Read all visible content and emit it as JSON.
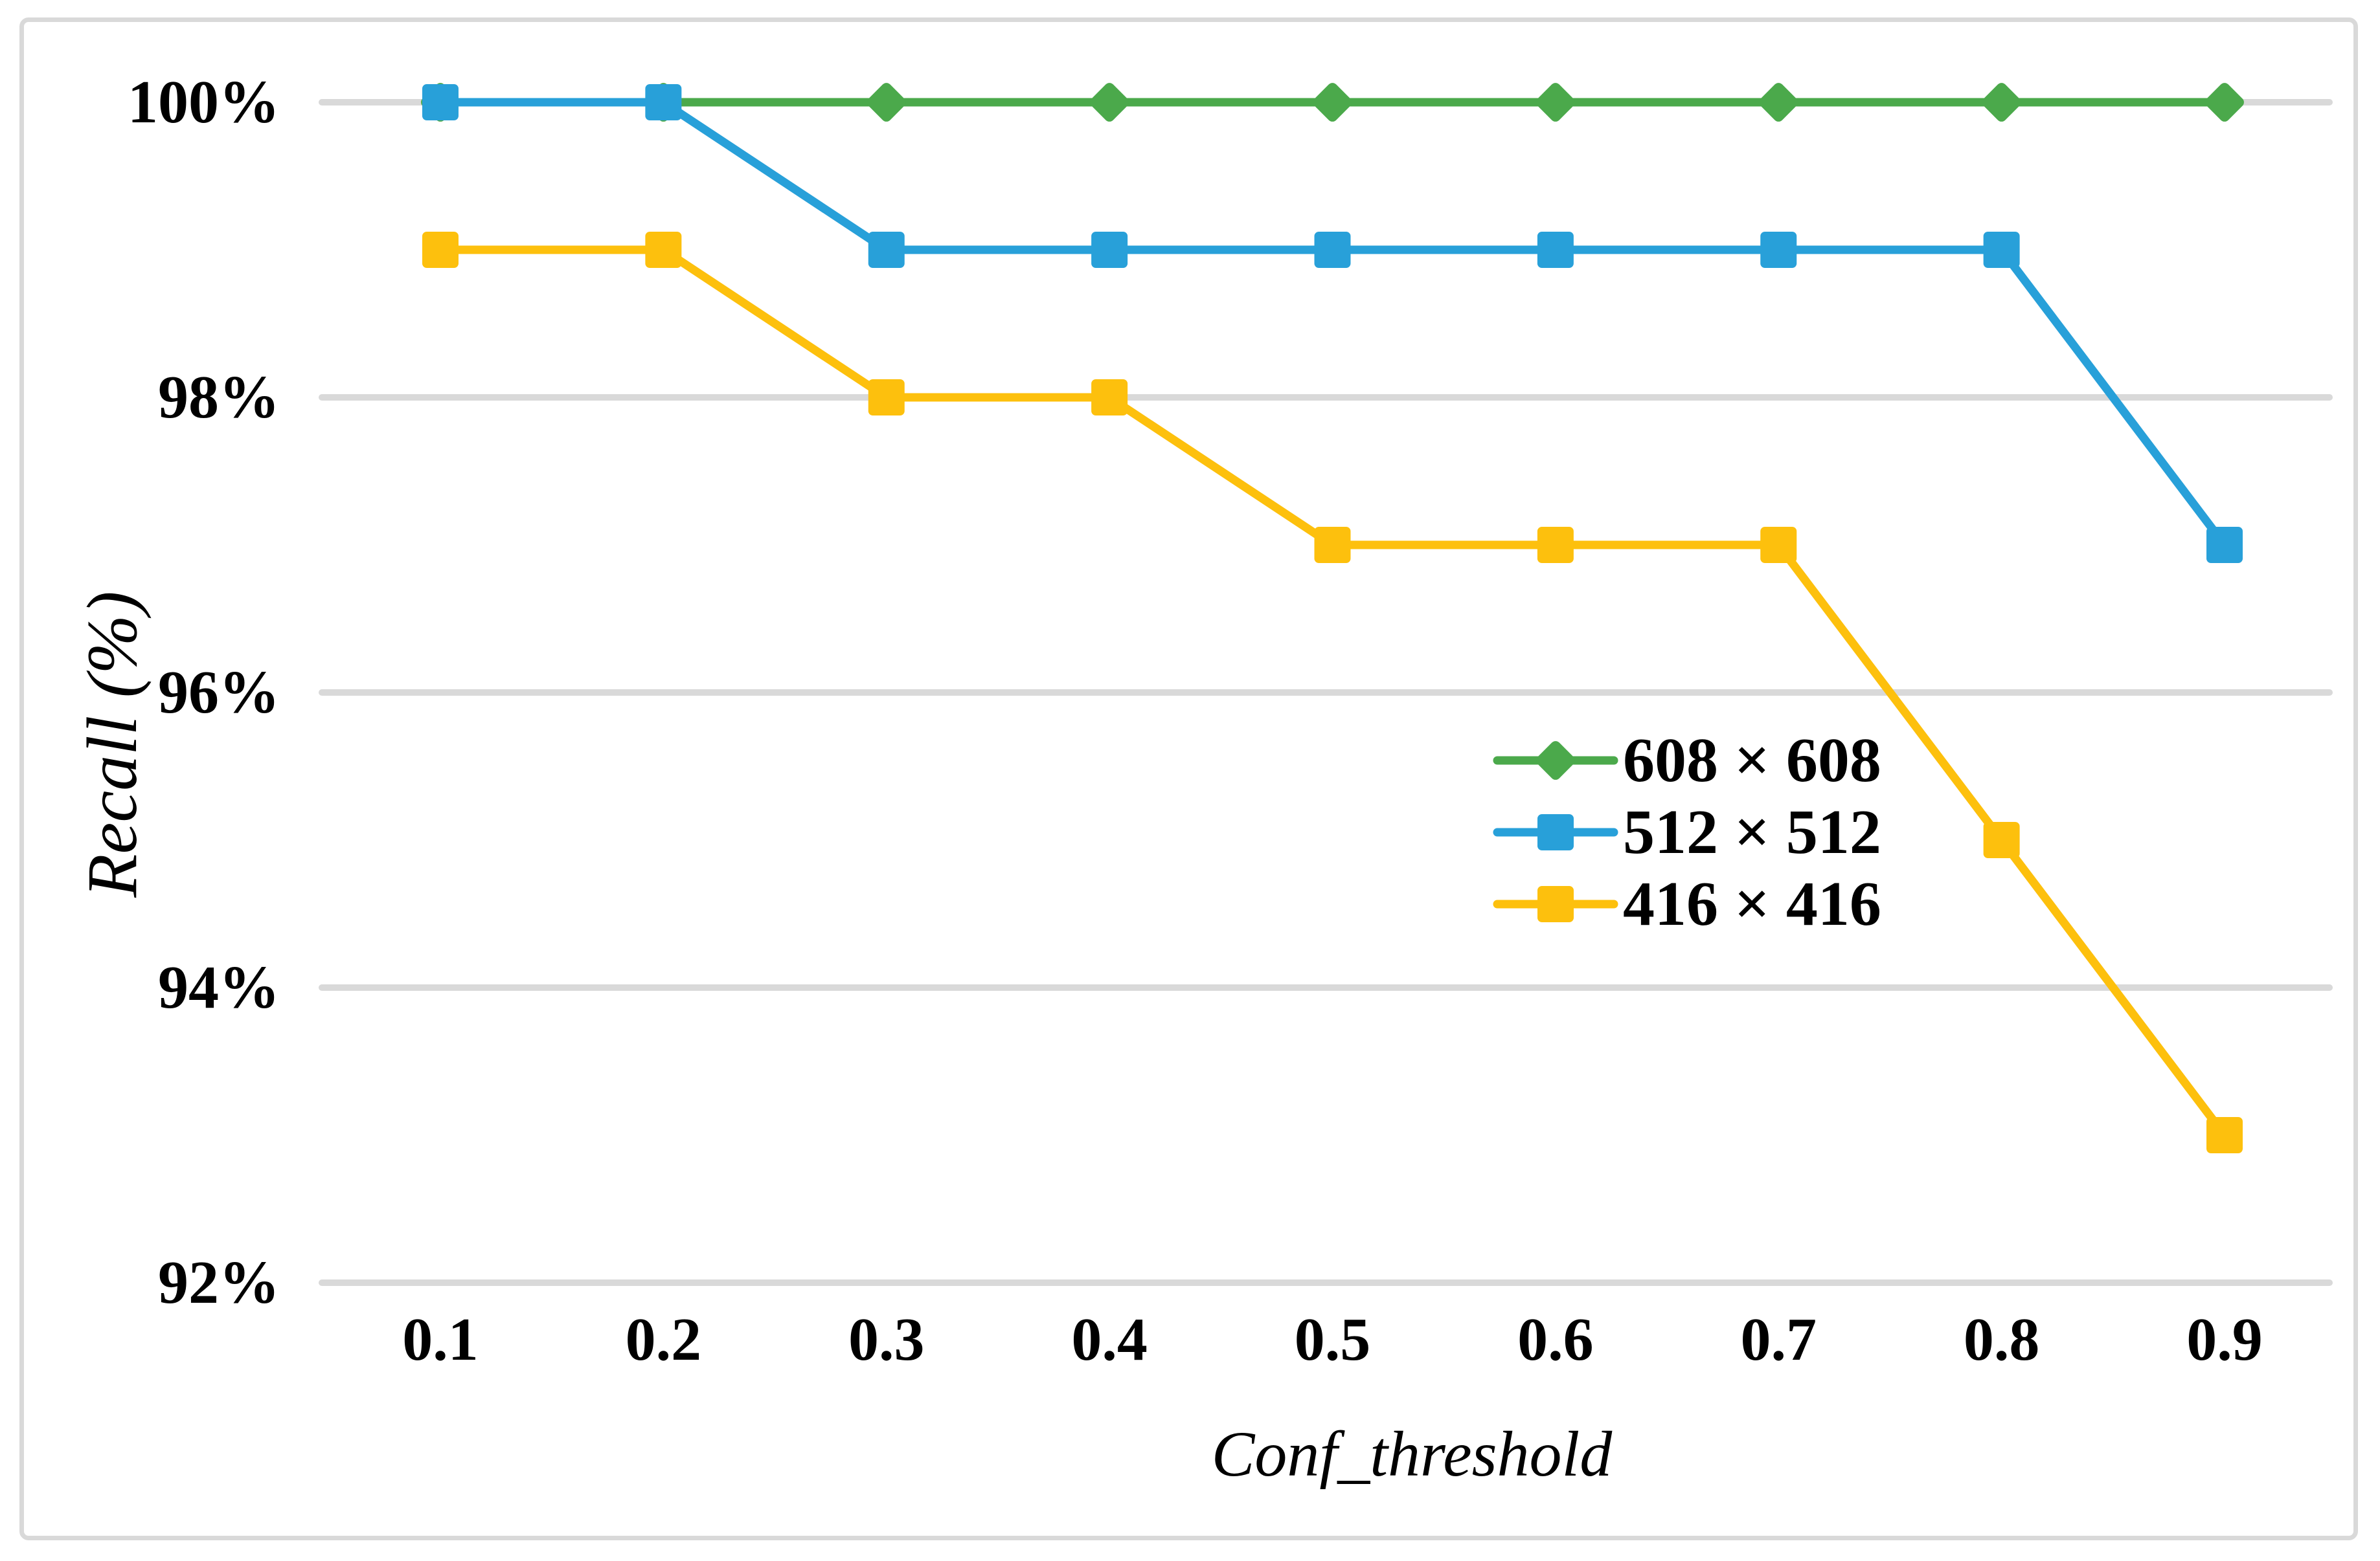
{
  "chart_data": {
    "type": "line",
    "title": "",
    "xlabel": "Conf_threshold",
    "ylabel": "Recall (%)",
    "x": [
      0.1,
      0.2,
      0.3,
      0.4,
      0.5,
      0.6,
      0.7,
      0.8,
      0.9
    ],
    "x_tick_labels": [
      "0.1",
      "0.2",
      "0.3",
      "0.4",
      "0.5",
      "0.6",
      "0.7",
      "0.8",
      "0.9"
    ],
    "y_ticks": [
      100,
      98,
      96,
      94,
      92
    ],
    "y_tick_labels": [
      "100%",
      "98%",
      "96%",
      "94%",
      "92%"
    ],
    "ylim": [
      92,
      100
    ],
    "grid": "horizontal",
    "legend_position": "inside-middle-right",
    "series": [
      {
        "name": "608 × 608",
        "marker": "diamond",
        "color": "#4BA94B",
        "values": [
          100,
          100,
          100,
          100,
          100,
          100,
          100,
          100,
          100
        ]
      },
      {
        "name": "512 × 512",
        "marker": "square",
        "color": "#28A0D9",
        "values": [
          100,
          100,
          99,
          99,
          99,
          99,
          99,
          99,
          97
        ]
      },
      {
        "name": "416 × 416",
        "marker": "square",
        "color": "#FDC00D",
        "values": [
          99,
          99,
          98,
          98,
          97,
          97,
          97,
          95,
          93
        ]
      }
    ]
  },
  "colors": {
    "gridline": "#D9D9D9",
    "chart_border": "#D9D9D9",
    "text": "#000000",
    "background": "#FFFFFF"
  }
}
